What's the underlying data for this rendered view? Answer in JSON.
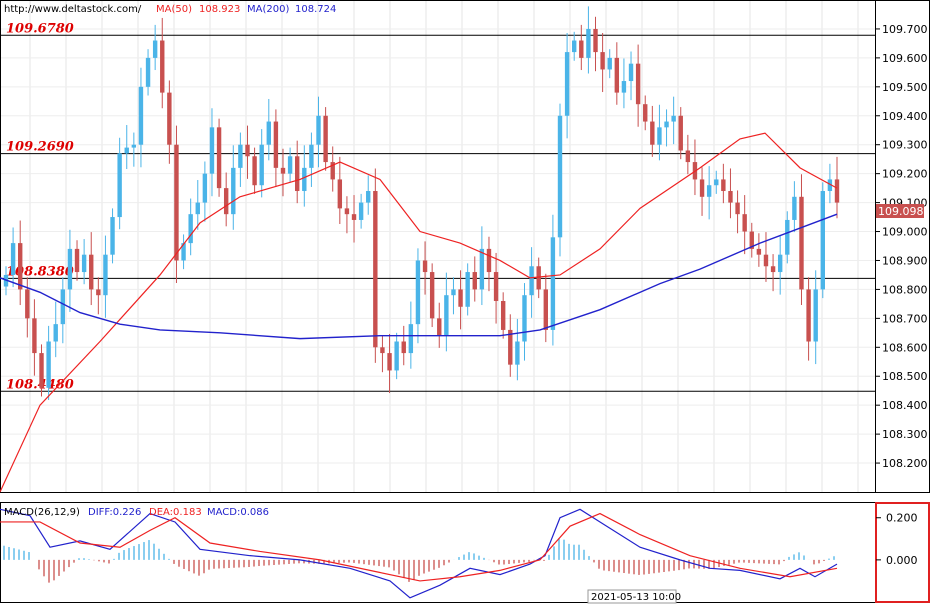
{
  "header": {
    "site": "http://www.deltastock.com/",
    "ma50_label": "MA(50)",
    "ma50_value": "108.923",
    "ma200_label": "MA(200)",
    "ma200_value": "108.724"
  },
  "macd_header": {
    "name": "MACD(26,12,9)",
    "diff": "DIFF:0.226",
    "dea": "DEA:0.183",
    "macd": "MACD:0.086"
  },
  "date_label": "2021-05-13 10:00",
  "colors": {
    "up": "#4ab4e8",
    "down": "#c8504f",
    "ma50": "#ee2222",
    "ma200": "#2222cc",
    "level_text": "#dd0000",
    "price_badge": "#c8504f"
  },
  "chart_data": {
    "type": "candlestick",
    "price_ylim": [
      108.1,
      109.8
    ],
    "y_ticks": [
      "109.700",
      "109.600",
      "109.500",
      "109.400",
      "109.300",
      "109.200",
      "109.100",
      "109.000",
      "108.900",
      "108.800",
      "108.700",
      "108.600",
      "108.500",
      "108.400",
      "108.300",
      "108.200"
    ],
    "current_price": "109.098",
    "levels": [
      {
        "label": "109.6780",
        "value": 109.678
      },
      {
        "label": "109.2690",
        "value": 109.269
      },
      {
        "label": "108.8380",
        "value": 108.838
      },
      {
        "label": "108.4480",
        "value": 108.448
      }
    ],
    "candles_close_path": [
      108.85,
      108.96,
      108.8,
      108.7,
      108.58,
      108.46,
      108.62,
      108.68,
      108.8,
      108.94,
      108.86,
      108.92,
      108.8,
      108.78,
      108.92,
      109.05,
      109.27,
      109.29,
      109.3,
      109.5,
      109.6,
      109.66,
      109.48,
      109.3,
      108.9,
      108.96,
      109.06,
      109.1,
      109.2,
      109.36,
      109.15,
      109.06,
      109.22,
      109.3,
      109.26,
      109.16,
      109.3,
      109.38,
      109.22,
      109.2,
      109.26,
      109.14,
      109.22,
      109.3,
      109.4,
      109.24,
      109.18,
      109.08,
      109.06,
      109.04,
      109.1,
      109.14,
      108.6,
      108.58,
      108.52,
      108.62,
      108.58,
      108.68,
      108.9,
      108.86,
      108.7,
      108.64,
      108.78,
      108.8,
      108.74,
      108.86,
      108.8,
      108.94,
      108.86,
      108.76,
      108.66,
      108.54,
      108.62,
      108.78,
      108.88,
      108.8,
      108.66,
      108.98,
      109.4,
      109.62,
      109.66,
      109.6,
      109.7,
      109.62,
      109.56,
      109.6,
      109.48,
      109.52,
      109.58,
      109.44,
      109.38,
      109.3,
      109.36,
      109.38,
      109.4,
      109.28,
      109.24,
      109.18,
      109.12,
      109.16,
      109.18,
      109.14,
      109.1,
      109.06,
      109.0,
      108.94,
      108.92,
      108.88,
      108.86,
      108.92,
      109.04,
      109.12,
      108.8,
      108.62,
      108.8,
      109.14,
      109.18,
      109.1
    ],
    "ma50": [
      [
        0,
        108.1
      ],
      [
        40,
        108.4
      ],
      [
        100,
        108.62
      ],
      [
        160,
        108.85
      ],
      [
        200,
        109.03
      ],
      [
        240,
        109.12
      ],
      [
        300,
        109.18
      ],
      [
        340,
        109.24
      ],
      [
        380,
        109.18
      ],
      [
        420,
        109.0
      ],
      [
        460,
        108.96
      ],
      [
        500,
        108.9
      ],
      [
        530,
        108.84
      ],
      [
        560,
        108.85
      ],
      [
        600,
        108.94
      ],
      [
        640,
        109.08
      ],
      [
        700,
        109.22
      ],
      [
        740,
        109.32
      ],
      [
        765,
        109.34
      ],
      [
        800,
        109.22
      ],
      [
        837,
        109.15
      ]
    ],
    "ma200": [
      [
        0,
        108.84
      ],
      [
        40,
        108.79
      ],
      [
        80,
        108.72
      ],
      [
        120,
        108.68
      ],
      [
        160,
        108.66
      ],
      [
        220,
        108.65
      ],
      [
        300,
        108.63
      ],
      [
        380,
        108.64
      ],
      [
        460,
        108.64
      ],
      [
        500,
        108.64
      ],
      [
        540,
        108.66
      ],
      [
        600,
        108.73
      ],
      [
        660,
        108.82
      ],
      [
        700,
        108.87
      ],
      [
        760,
        108.96
      ],
      [
        837,
        109.06
      ]
    ],
    "macd_ylim": [
      -0.2,
      0.27
    ],
    "macd_ticks": [
      "0.200",
      "0.000"
    ],
    "diff": [
      [
        0,
        0.24
      ],
      [
        30,
        0.21
      ],
      [
        50,
        0.06
      ],
      [
        80,
        0.09
      ],
      [
        110,
        0.05
      ],
      [
        150,
        0.22
      ],
      [
        175,
        0.18
      ],
      [
        200,
        0.05
      ],
      [
        250,
        0.02
      ],
      [
        300,
        0.0
      ],
      [
        350,
        -0.04
      ],
      [
        390,
        -0.1
      ],
      [
        410,
        -0.18
      ],
      [
        440,
        -0.12
      ],
      [
        470,
        -0.04
      ],
      [
        500,
        -0.07
      ],
      [
        530,
        -0.02
      ],
      [
        545,
        0.02
      ],
      [
        560,
        0.2
      ],
      [
        580,
        0.24
      ],
      [
        600,
        0.18
      ],
      [
        640,
        0.06
      ],
      [
        680,
        0.0
      ],
      [
        710,
        -0.04
      ],
      [
        740,
        -0.05
      ],
      [
        780,
        -0.09
      ],
      [
        800,
        -0.04
      ],
      [
        815,
        -0.08
      ],
      [
        837,
        -0.02
      ]
    ],
    "dea": [
      [
        0,
        0.18
      ],
      [
        40,
        0.18
      ],
      [
        80,
        0.08
      ],
      [
        120,
        0.06
      ],
      [
        150,
        0.14
      ],
      [
        175,
        0.2
      ],
      [
        210,
        0.08
      ],
      [
        260,
        0.04
      ],
      [
        320,
        0.0
      ],
      [
        380,
        -0.06
      ],
      [
        420,
        -0.1
      ],
      [
        460,
        -0.08
      ],
      [
        500,
        -0.05
      ],
      [
        540,
        0.0
      ],
      [
        570,
        0.16
      ],
      [
        600,
        0.22
      ],
      [
        640,
        0.12
      ],
      [
        690,
        0.02
      ],
      [
        740,
        -0.04
      ],
      [
        790,
        -0.08
      ],
      [
        837,
        -0.04
      ]
    ]
  }
}
